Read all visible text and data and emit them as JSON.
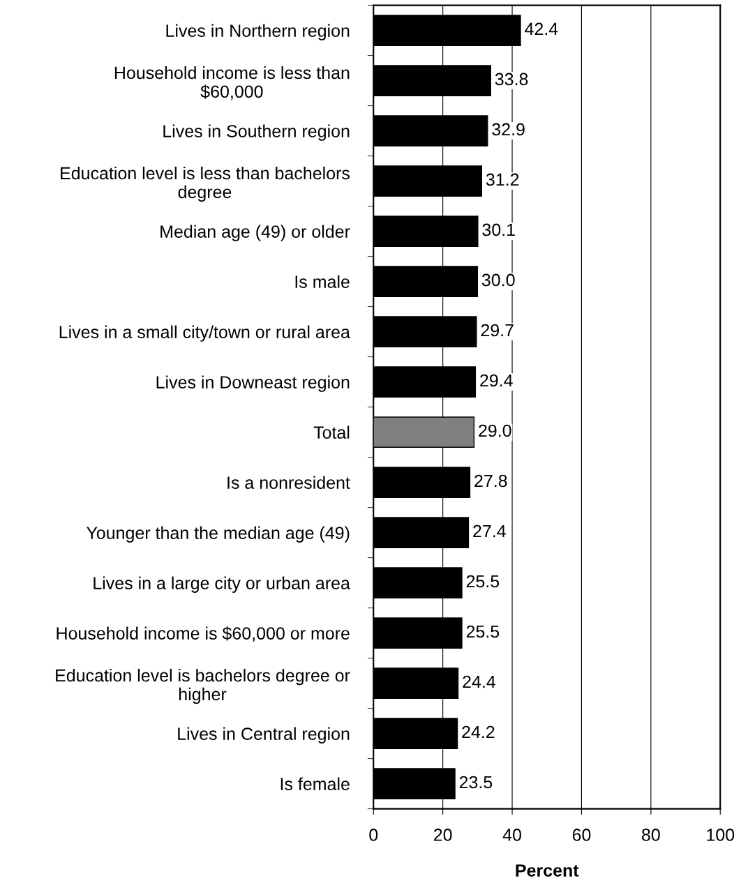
{
  "chart_data": {
    "type": "bar",
    "orientation": "horizontal",
    "xlabel": "Percent",
    "categories": [
      "Lives in Northern region",
      "Household income is less than\n$60,000",
      "Lives in Southern region",
      "Education level is less than bachelors\ndegree",
      "Median age (49) or older",
      "Is male",
      "Lives in a small city/town or rural area",
      "Lives in Downeast region",
      "Total",
      "Is a nonresident",
      "Younger than the median age (49)",
      "Lives in a large city or urban area",
      "Household income is $60,000 or more",
      "Education level is bachelors degree or\nhigher",
      "Lives in Central region",
      "Is female"
    ],
    "values": [
      42.4,
      33.8,
      32.9,
      31.2,
      30.1,
      30.0,
      29.7,
      29.4,
      29.0,
      27.8,
      27.4,
      25.5,
      25.5,
      24.4,
      24.2,
      23.5
    ],
    "value_labels": [
      "42.4",
      "33.8",
      "32.9",
      "31.2",
      "30.1",
      "30.0",
      "29.7",
      "29.4",
      "29.0",
      "27.8",
      "27.4",
      "25.5",
      "25.5",
      "24.4",
      "24.2",
      "23.5"
    ],
    "colors": [
      "#000000",
      "#000000",
      "#000000",
      "#000000",
      "#000000",
      "#000000",
      "#000000",
      "#000000",
      "#808080",
      "#000000",
      "#000000",
      "#000000",
      "#000000",
      "#000000",
      "#000000",
      "#000000"
    ],
    "xlim": [
      0,
      100
    ],
    "xticks": [
      0,
      20,
      40,
      60,
      80,
      100
    ],
    "grid": "x",
    "legend": false
  }
}
